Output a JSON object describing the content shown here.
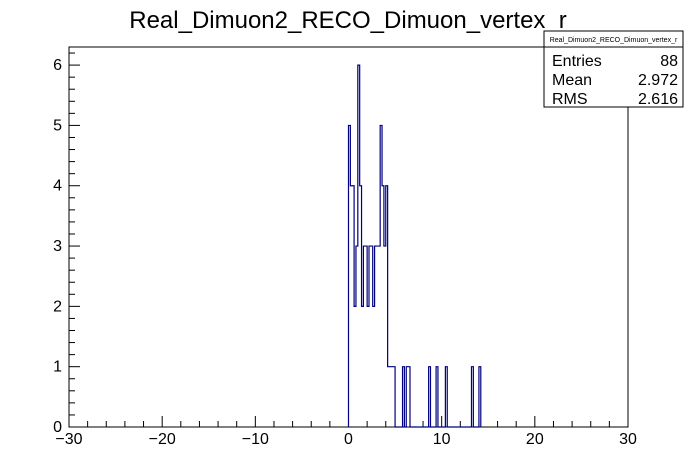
{
  "chart_data": {
    "type": "histogram",
    "title": "Real_Dimuon2_RECO_Dimuon_vertex_r",
    "xlabel": "",
    "ylabel": "",
    "xlim": [
      -30,
      30
    ],
    "ylim": [
      0,
      6.3
    ],
    "x_ticks": [
      -30,
      -20,
      -10,
      0,
      10,
      20,
      30
    ],
    "y_ticks": [
      0,
      1,
      2,
      3,
      4,
      5,
      6
    ],
    "bin_width": 0.2,
    "series": [
      {
        "color": "#000080",
        "bins": [
          {
            "x": 0.0,
            "y": 5
          },
          {
            "x": 0.2,
            "y": 4
          },
          {
            "x": 0.4,
            "y": 4
          },
          {
            "x": 0.6,
            "y": 2
          },
          {
            "x": 0.8,
            "y": 3
          },
          {
            "x": 1.0,
            "y": 6
          },
          {
            "x": 1.2,
            "y": 4
          },
          {
            "x": 1.4,
            "y": 2
          },
          {
            "x": 1.6,
            "y": 3
          },
          {
            "x": 1.8,
            "y": 3
          },
          {
            "x": 2.0,
            "y": 2
          },
          {
            "x": 2.2,
            "y": 3
          },
          {
            "x": 2.4,
            "y": 3
          },
          {
            "x": 2.6,
            "y": 2
          },
          {
            "x": 2.8,
            "y": 3
          },
          {
            "x": 3.0,
            "y": 3
          },
          {
            "x": 3.2,
            "y": 3
          },
          {
            "x": 3.4,
            "y": 5
          },
          {
            "x": 3.6,
            "y": 4
          },
          {
            "x": 3.8,
            "y": 3
          },
          {
            "x": 4.0,
            "y": 4
          },
          {
            "x": 4.2,
            "y": 1
          },
          {
            "x": 4.4,
            "y": 1
          },
          {
            "x": 4.6,
            "y": 1
          },
          {
            "x": 4.8,
            "y": 1
          },
          {
            "x": 5.8,
            "y": 1
          },
          {
            "x": 6.2,
            "y": 1
          },
          {
            "x": 6.4,
            "y": 1
          },
          {
            "x": 8.6,
            "y": 1
          },
          {
            "x": 9.4,
            "y": 1
          },
          {
            "x": 10.4,
            "y": 1
          },
          {
            "x": 13.2,
            "y": 1
          },
          {
            "x": 14.0,
            "y": 1
          }
        ]
      }
    ]
  },
  "stats_box": {
    "title": "Real_Dimuon2_RECO_Dimuon_vertex_r",
    "rows": [
      {
        "label": "Entries",
        "value": "88"
      },
      {
        "label": "Mean",
        "value": "2.972"
      },
      {
        "label": "RMS",
        "value": "2.616"
      }
    ]
  }
}
